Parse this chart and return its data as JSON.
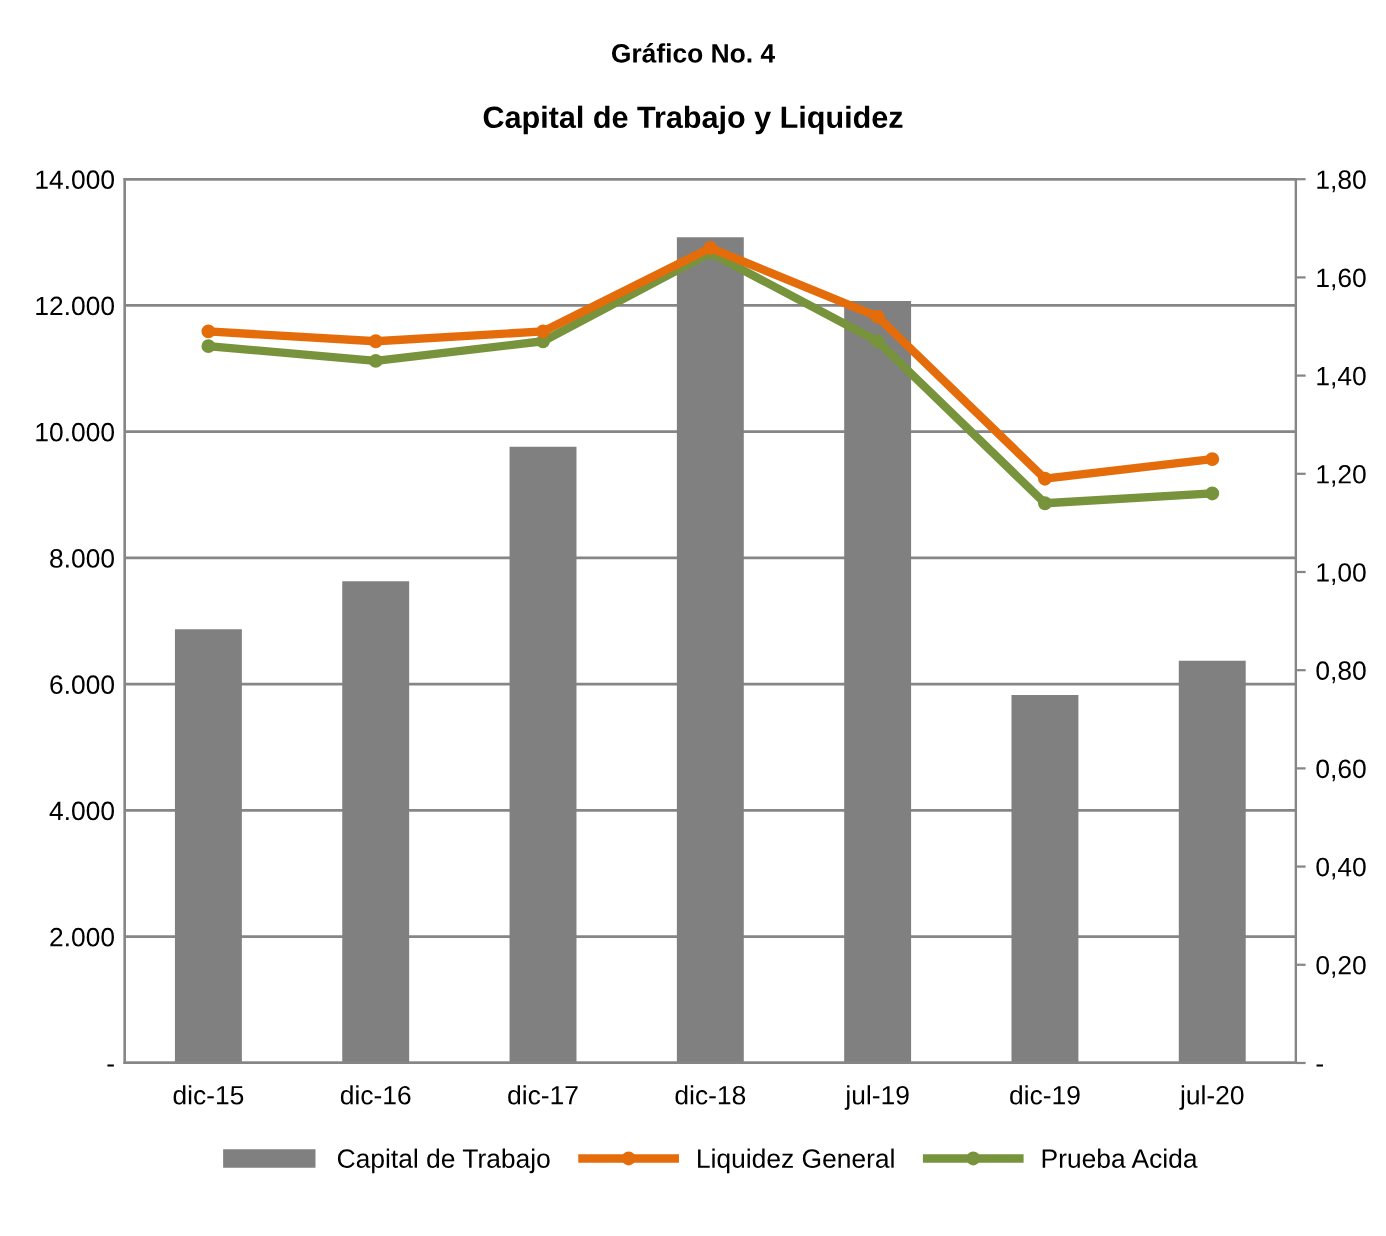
{
  "chart_data": {
    "type": "bar",
    "title": "Gráfico No. 4",
    "subtitle": "Capital de Trabajo y Liquidez",
    "categories": [
      "dic-15",
      "dic-16",
      "dic-17",
      "dic-18",
      "jul-19",
      "dic-19",
      "jul-20"
    ],
    "series": [
      {
        "name": "Capital de Trabajo",
        "color": "#808080",
        "values": [
          6870,
          7630,
          9760,
          13080,
          12070,
          5830,
          6370
        ]
      },
      {
        "name": "Liquidez General",
        "type": "line",
        "axis": "y2",
        "color": "#e46c0a",
        "marker": "circle",
        "values": [
          1.49,
          1.47,
          1.49,
          1.66,
          1.52,
          1.19,
          1.23
        ]
      },
      {
        "name": "Prueba Acida",
        "type": "line",
        "axis": "y2",
        "color": "#77933c",
        "marker": "circle",
        "values": [
          1.46,
          1.43,
          1.47,
          1.65,
          1.47,
          1.14,
          1.16
        ]
      }
    ],
    "ylim": [
      0,
      14000
    ],
    "yticks": [
      {
        "value": 0,
        "label": "-"
      },
      {
        "value": 2000,
        "label": "2.000"
      },
      {
        "value": 4000,
        "label": "4.000"
      },
      {
        "value": 6000,
        "label": "6.000"
      },
      {
        "value": 8000,
        "label": "8.000"
      },
      {
        "value": 10000,
        "label": "10.000"
      },
      {
        "value": 12000,
        "label": "12.000"
      },
      {
        "value": 14000,
        "label": "14.000"
      }
    ],
    "y2lim": [
      0,
      1.8
    ],
    "y2ticks": [
      {
        "value": 0,
        "label": "-"
      },
      {
        "value": 0.2,
        "label": "0,20"
      },
      {
        "value": 0.4,
        "label": "0,40"
      },
      {
        "value": 0.6,
        "label": "0,60"
      },
      {
        "value": 0.8,
        "label": "0,80"
      },
      {
        "value": 1.0,
        "label": "1,00"
      },
      {
        "value": 1.2,
        "label": "1,20"
      },
      {
        "value": 1.4,
        "label": "1,40"
      },
      {
        "value": 1.6,
        "label": "1,60"
      },
      {
        "value": 1.8,
        "label": "1,80"
      }
    ],
    "grid": "y",
    "legend": "bottom"
  }
}
